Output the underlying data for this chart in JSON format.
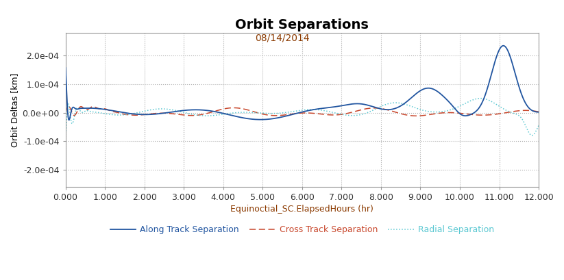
{
  "title": "Orbit Separations",
  "subtitle": "08/14/2014",
  "xlabel": "Equinoctial_SC.ElapsedHours (hr)",
  "ylabel": "Orbit Deltas [km]",
  "xlim": [
    0.0,
    12.0
  ],
  "ylim": [
    -0.00026,
    0.00028
  ],
  "yticks": [
    -0.0002,
    -0.0001,
    0.0,
    0.0001,
    0.0002
  ],
  "xticks": [
    0.0,
    1.0,
    2.0,
    3.0,
    4.0,
    5.0,
    6.0,
    7.0,
    8.0,
    9.0,
    10.0,
    11.0,
    12.0
  ],
  "background_color": "#ffffff",
  "grid_color": "#b0b0b0",
  "along_track_color": "#2155a0",
  "cross_track_color": "#c8472c",
  "radial_color": "#5bc8d2",
  "legend_labels": [
    "Along Track Separation",
    "Cross Track Separation",
    "Radial Separation"
  ],
  "subtitle_color": "#8b3a00",
  "xlabel_color": "#8b3a00",
  "ylabel_color": "#000000",
  "title_fontsize": 14,
  "subtitle_fontsize": 10,
  "axis_label_fontsize": 9,
  "tick_fontsize": 9,
  "legend_fontsize": 9
}
